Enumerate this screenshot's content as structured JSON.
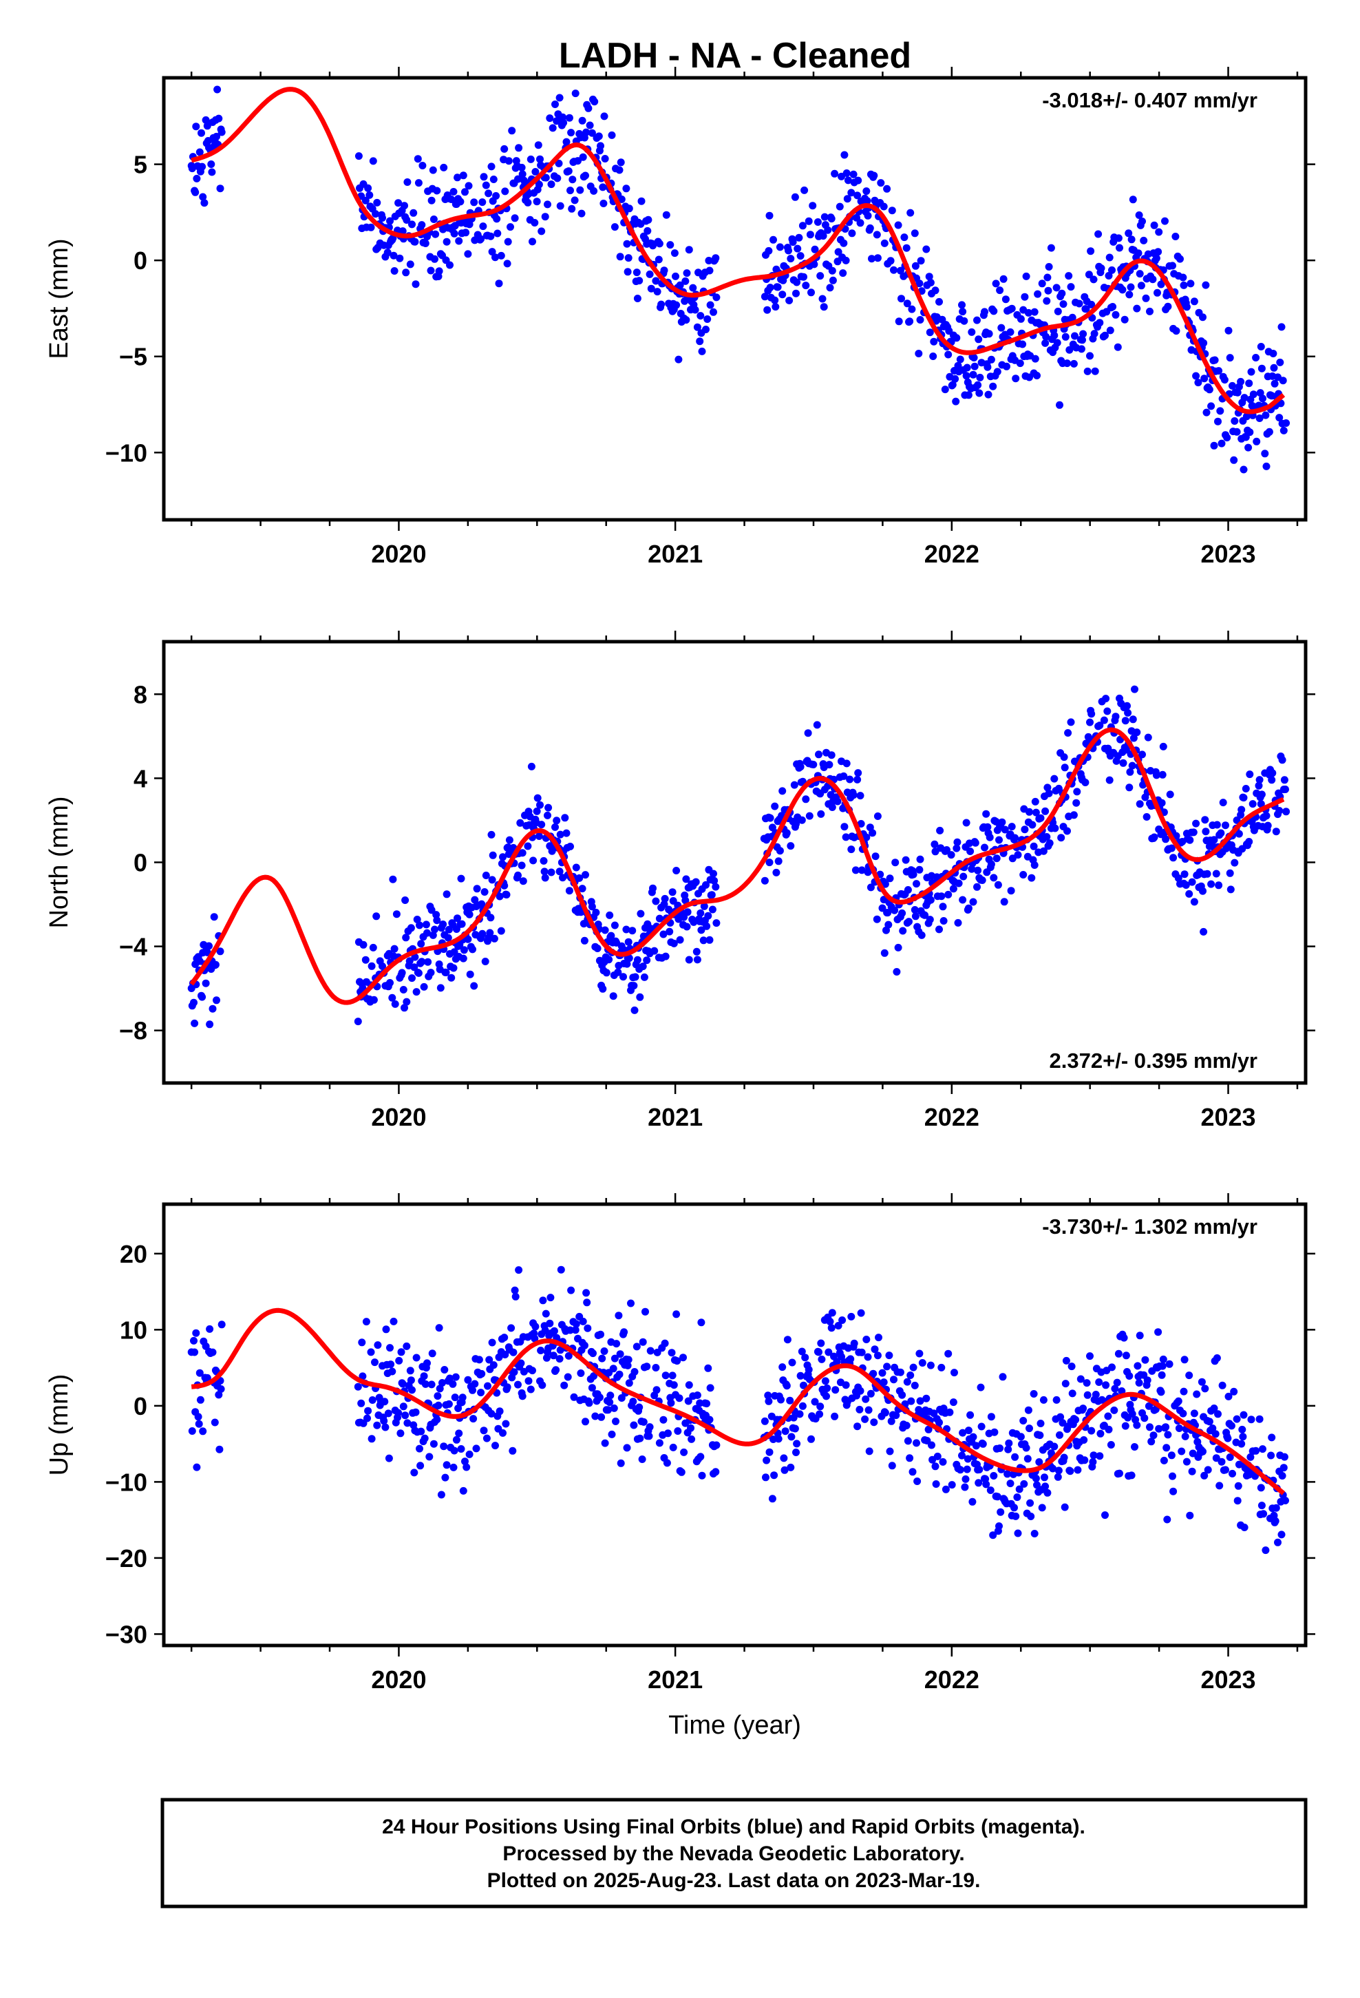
{
  "title": "LADH  - NA - Cleaned",
  "colors": {
    "points": "#0000ff",
    "fit": "#ff0000",
    "frame": "#000000"
  },
  "footer": {
    "line1": "24 Hour Positions Using Final Orbits (blue) and Rapid Orbits (magenta).",
    "line2": "Processed by the Nevada Geodetic Laboratory.",
    "line3": "Plotted on 2025-Aug-23. Last data on 2023-Mar-19."
  },
  "chart_data": [
    {
      "type": "scatter",
      "ylabel": "East (mm)",
      "xlabel": "",
      "rate": "-3.018+/- 0.407 mm/yr",
      "rate_placement": "top-right",
      "xlim": [
        2019.15,
        2023.28
      ],
      "ylim": [
        -13.5,
        9.5
      ],
      "yticks": [
        5,
        0,
        -5,
        -10
      ],
      "xticks": [
        2020,
        2021,
        2022,
        2023
      ],
      "fit": {
        "x": [
          2019.25,
          2019.35,
          2019.45,
          2019.55,
          2019.65,
          2019.75,
          2019.85,
          2019.95,
          2020.05,
          2020.15,
          2020.25,
          2020.35,
          2020.45,
          2020.55,
          2020.65,
          2020.75,
          2020.85,
          2020.95,
          2021.05,
          2021.15,
          2021.25,
          2021.35,
          2021.45,
          2021.55,
          2021.65,
          2021.75,
          2021.85,
          2021.95,
          2022.05,
          2022.15,
          2022.25,
          2022.35,
          2022.45,
          2022.55,
          2022.65,
          2022.75,
          2022.85,
          2022.95,
          2023.05,
          2023.15,
          2023.2
        ],
        "y": [
          5.2,
          5.8,
          7.2,
          8.6,
          8.7,
          6.5,
          3.2,
          1.6,
          1.3,
          1.9,
          2.3,
          2.6,
          3.6,
          5.0,
          6.0,
          4.2,
          1.3,
          -0.9,
          -1.8,
          -1.5,
          -1.0,
          -0.8,
          -0.3,
          0.8,
          2.6,
          2.3,
          -0.8,
          -3.8,
          -4.8,
          -4.5,
          -4.0,
          -3.5,
          -3.2,
          -2.0,
          -0.2,
          -0.6,
          -3.2,
          -6.2,
          -7.8,
          -7.6,
          -7.0
        ]
      },
      "points_extent": {
        "x_first": 2019.25,
        "x_last": 2023.21
      }
    },
    {
      "type": "scatter",
      "ylabel": "North (mm)",
      "xlabel": "",
      "rate": "2.372+/- 0.395 mm/yr",
      "rate_placement": "bottom-right",
      "xlim": [
        2019.15,
        2023.28
      ],
      "ylim": [
        -10.5,
        10.5
      ],
      "yticks": [
        8,
        4,
        0,
        -4,
        -8
      ],
      "xticks": [
        2020,
        2021,
        2022,
        2023
      ],
      "fit": {
        "x": [
          2019.25,
          2019.35,
          2019.45,
          2019.55,
          2019.65,
          2019.75,
          2019.85,
          2019.95,
          2020.05,
          2020.15,
          2020.25,
          2020.35,
          2020.45,
          2020.55,
          2020.65,
          2020.75,
          2020.85,
          2020.95,
          2021.05,
          2021.15,
          2021.25,
          2021.35,
          2021.45,
          2021.55,
          2021.65,
          2021.75,
          2021.85,
          2021.95,
          2022.05,
          2022.15,
          2022.25,
          2022.35,
          2022.45,
          2022.55,
          2022.65,
          2022.75,
          2022.85,
          2022.95,
          2023.05,
          2023.15,
          2023.2
        ],
        "y": [
          -5.8,
          -3.8,
          -1.4,
          -0.9,
          -3.5,
          -6.2,
          -6.5,
          -5.2,
          -4.3,
          -4.0,
          -3.3,
          -1.4,
          1.0,
          1.2,
          -1.5,
          -4.0,
          -4.2,
          -3.0,
          -2.0,
          -1.8,
          -1.1,
          0.8,
          3.3,
          3.9,
          1.9,
          -1.3,
          -1.8,
          -1.0,
          0.0,
          0.5,
          0.9,
          2.0,
          4.4,
          6.2,
          5.5,
          2.4,
          0.3,
          0.5,
          1.9,
          2.7,
          3.0
        ]
      },
      "points_extent": {
        "x_first": 2019.25,
        "x_last": 2023.21
      }
    },
    {
      "type": "scatter",
      "ylabel": "Up (mm)",
      "xlabel": "Time (year)",
      "rate": "-3.730+/- 1.302 mm/yr",
      "rate_placement": "top-right",
      "xlim": [
        2019.15,
        2023.28
      ],
      "ylim": [
        -31.5,
        26.5
      ],
      "yticks": [
        20,
        10,
        0,
        -10,
        -20,
        -30
      ],
      "xticks": [
        2020,
        2021,
        2022,
        2023
      ],
      "fit": {
        "x": [
          2019.25,
          2019.35,
          2019.45,
          2019.55,
          2019.65,
          2019.75,
          2019.85,
          2019.95,
          2020.05,
          2020.15,
          2020.25,
          2020.35,
          2020.45,
          2020.55,
          2020.65,
          2020.75,
          2020.85,
          2020.95,
          2021.05,
          2021.15,
          2021.25,
          2021.35,
          2021.45,
          2021.55,
          2021.65,
          2021.75,
          2021.85,
          2021.95,
          2022.05,
          2022.15,
          2022.25,
          2022.35,
          2022.45,
          2022.55,
          2022.65,
          2022.75,
          2022.85,
          2022.95,
          2023.05,
          2023.15,
          2023.2
        ],
        "y": [
          2.5,
          4.0,
          9.5,
          12.5,
          11.0,
          7.0,
          3.5,
          2.5,
          1.0,
          -1.0,
          -1.0,
          2.5,
          7.0,
          8.5,
          6.5,
          3.5,
          1.5,
          0.0,
          -1.5,
          -3.5,
          -5.0,
          -3.5,
          1.0,
          4.5,
          5.0,
          2.0,
          -1.0,
          -3.0,
          -5.5,
          -7.5,
          -8.5,
          -7.5,
          -3.5,
          0.0,
          1.5,
          0.0,
          -2.5,
          -4.5,
          -7.0,
          -10.0,
          -11.5
        ]
      },
      "points_extent": {
        "x_first": 2019.25,
        "x_last": 2023.21
      }
    }
  ]
}
